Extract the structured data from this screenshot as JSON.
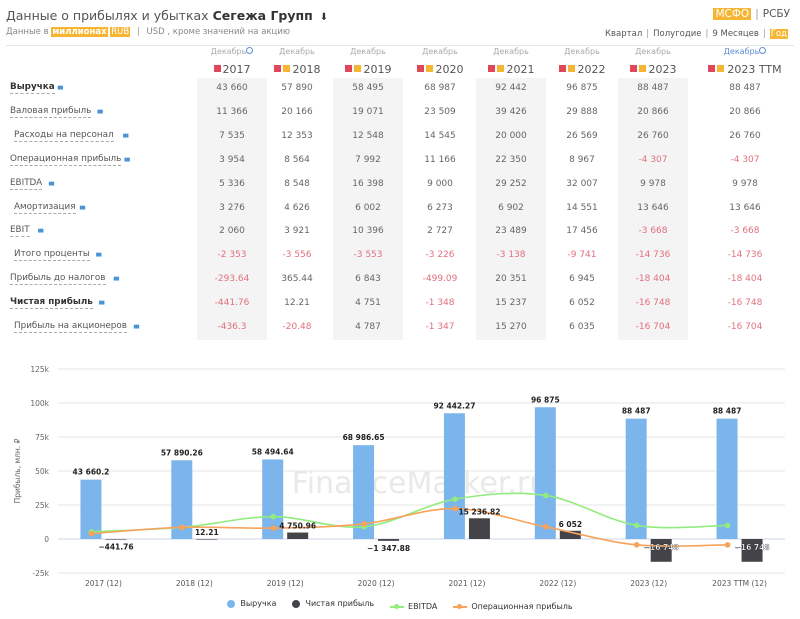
{
  "header": {
    "title_prefix": "Данные о прибылях и убытках",
    "company": "Сегежа Групп",
    "download_icon": "download-icon",
    "sub_prefix": "Данные в",
    "units": "миллионах",
    "currency_active": "RUB",
    "currency_other": "USD",
    "sub_suffix": ", кроме значений на акцию"
  },
  "standards": {
    "active": "МСФО",
    "other": "РСБУ"
  },
  "periods": [
    {
      "label": "Квартал",
      "active": false
    },
    {
      "label": "Полугодие",
      "active": false
    },
    {
      "label": "9 Месяцев",
      "active": false
    },
    {
      "label": "Год",
      "active": true
    }
  ],
  "columns": [
    {
      "month": "Декабрь",
      "year": "2017",
      "pdf": true,
      "report": false,
      "info": true,
      "highlight": true
    },
    {
      "month": "Декабрь",
      "year": "2018",
      "pdf": true,
      "report": true,
      "info": false,
      "highlight": false
    },
    {
      "month": "Декабрь",
      "year": "2019",
      "pdf": true,
      "report": true,
      "info": false,
      "highlight": true
    },
    {
      "month": "Декабрь",
      "year": "2020",
      "pdf": true,
      "report": true,
      "info": false,
      "highlight": false
    },
    {
      "month": "Декабрь",
      "year": "2021",
      "pdf": true,
      "report": true,
      "info": false,
      "highlight": true
    },
    {
      "month": "Декабрь",
      "year": "2022",
      "pdf": true,
      "report": true,
      "info": false,
      "highlight": false
    },
    {
      "month": "Декабрь",
      "year": "2023",
      "pdf": true,
      "report": true,
      "info": false,
      "highlight": true
    },
    {
      "month": "Декабрь",
      "year": "2023 TTM",
      "pdf": true,
      "report": true,
      "info": true,
      "highlight": false
    }
  ],
  "rows": [
    {
      "label": "Выручка",
      "bold": true,
      "values": [
        "43 660",
        "57 890",
        "58 495",
        "68 987",
        "92 442",
        "96 875",
        "88 487",
        "88 487"
      ]
    },
    {
      "label": "Валовая прибыль",
      "bold": false,
      "values": [
        "11 366",
        "20 166",
        "19 071",
        "23 509",
        "39 426",
        "29 888",
        "20 866",
        "20 866"
      ]
    },
    {
      "label": "Расходы на персонал",
      "bold": false,
      "values": [
        "7 535",
        "12 353",
        "12 548",
        "14 545",
        "20 000",
        "26 569",
        "26 760",
        "26 760"
      ]
    },
    {
      "label": "Операционная прибыль",
      "bold": false,
      "values": [
        "3 954",
        "8 564",
        "7 992",
        "11 166",
        "22 350",
        "8 967",
        "-4 307",
        "-4 307"
      ]
    },
    {
      "label": "EBITDA",
      "bold": false,
      "values": [
        "5 336",
        "8 548",
        "16 398",
        "9 000",
        "29 252",
        "32 007",
        "9 978",
        "9 978"
      ]
    },
    {
      "label": "Амортизация",
      "bold": false,
      "values": [
        "3 276",
        "4 626",
        "6 002",
        "6 273",
        "6 902",
        "14 551",
        "13 646",
        "13 646"
      ]
    },
    {
      "label": "EBIT",
      "bold": false,
      "values": [
        "2 060",
        "3 921",
        "10 396",
        "2 727",
        "23 489",
        "17 456",
        "-3 668",
        "-3 668"
      ]
    },
    {
      "label": "Итого проценты",
      "bold": false,
      "values": [
        "-2 353",
        "-3 556",
        "-3 553",
        "-3 226",
        "-3 138",
        "-9 741",
        "-14 736",
        "-14 736"
      ]
    },
    {
      "label": "Прибыль до налогов",
      "bold": false,
      "values": [
        "-293.64",
        "365.44",
        "6 843",
        "-499.09",
        "20 351",
        "6 945",
        "-18 404",
        "-18 404"
      ]
    },
    {
      "label": "Чистая прибыль",
      "bold": true,
      "values": [
        "-441.76",
        "12.21",
        "4 751",
        "-1 348",
        "15 237",
        "6 052",
        "-16 748",
        "-16 748"
      ]
    },
    {
      "label": "Прибыль на акционеров",
      "bold": false,
      "values": [
        "-436.3",
        "-20.48",
        "4 787",
        "-1 347",
        "15 270",
        "6 035",
        "-16 704",
        "-16 704"
      ]
    }
  ],
  "chart_data": {
    "type": "bar",
    "title": "",
    "xlabel": "",
    "ylabel": "Прибыль, млн. ₽",
    "watermark": "FinanceMarker.ru",
    "ylim": [
      -25000,
      125000
    ],
    "yticks": [
      -25000,
      0,
      25000,
      50000,
      75000,
      100000,
      125000
    ],
    "ytick_labels": [
      "-25k",
      "0",
      "25k",
      "50k",
      "75k",
      "100k",
      "125k"
    ],
    "grid": true,
    "legend_position": "bottom",
    "categories": [
      "2017 (12)",
      "2018 (12)",
      "2019 (12)",
      "2020 (12)",
      "2021 (12)",
      "2022 (12)",
      "2023 (12)",
      "2023 TTM (12)"
    ],
    "series": [
      {
        "name": "Выручка",
        "kind": "bar",
        "color": "#7cb5ec",
        "values": [
          43660.2,
          57890.26,
          58494.64,
          68986.65,
          92442.27,
          96875,
          88487,
          88487
        ],
        "labels": [
          "43 660.2",
          "57 890.26",
          "58 494.64",
          "68 986.65",
          "92 442.27",
          "96 875",
          "88 487",
          "88 487"
        ]
      },
      {
        "name": "Чистая прибыль",
        "kind": "bar",
        "color": "#434348",
        "values": [
          -441.76,
          12.21,
          4750.96,
          -1347.88,
          15236.82,
          6052,
          -16748,
          -16748
        ],
        "labels": [
          "-441.76",
          "12.21",
          "4 750.96",
          "-1 347.88",
          "15 236.82",
          "6 052",
          "-16 748",
          "-16 748"
        ]
      },
      {
        "name": "EBITDA",
        "kind": "line",
        "color": "#90ed7d",
        "values": [
          5336,
          8548,
          16398,
          9000,
          29252,
          32007,
          9978,
          9978
        ]
      },
      {
        "name": "Операционная прибыль",
        "kind": "line",
        "color": "#f7a35c",
        "values": [
          3954,
          8564,
          7992,
          11166,
          22350,
          8967,
          -4307,
          -4307
        ]
      }
    ]
  }
}
